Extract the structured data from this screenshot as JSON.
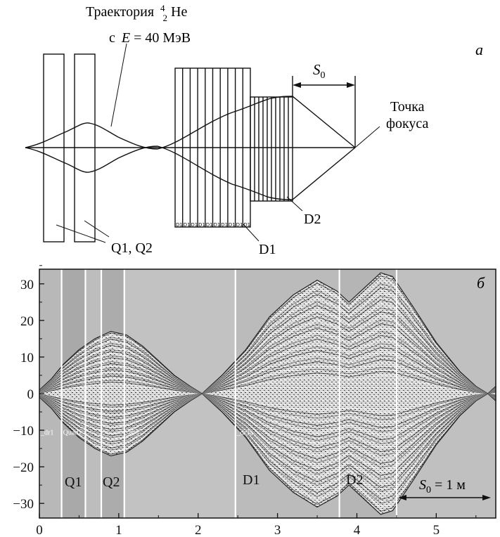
{
  "top_diagram": {
    "panel_label": "а",
    "trajectory_label_line1": "Траектория",
    "isotope_A": "4",
    "isotope_Z": "2",
    "isotope_symbol": "He",
    "energy_prefix": "с",
    "energy_E": "E",
    "energy_value": " = 40 МэВ",
    "focus_label_line1": "Точка",
    "focus_label_line2": "фокуса",
    "s0_label": "S",
    "s0_sub": "0",
    "q_label": "Q1, Q2",
    "d1_label": "D1",
    "d2_label": "D2",
    "d1_cell_text": "D1"
  },
  "chart_data": {
    "type": "line",
    "panel_label": "б",
    "x_ticks": [
      "0",
      "1",
      "2",
      "3",
      "4",
      "5"
    ],
    "y_ticks": [
      "30",
      "20",
      "10",
      "0",
      "−10",
      "−20",
      "−30"
    ],
    "xlim": [
      0,
      5.75
    ],
    "ylim": [
      -34,
      34
    ],
    "regions": [
      {
        "name": "_dr1",
        "x0": 0,
        "x1": 0.28
      },
      {
        "name": "Quad1",
        "x0": 0.28,
        "x1": 0.58
      },
      {
        "name": "",
        "x0": 0.58,
        "x1": 0.78
      },
      {
        "name": "",
        "x0": 0.78,
        "x1": 1.07
      },
      {
        "name": "_dr3",
        "x0": 1.07,
        "x1": 2.47
      },
      {
        "name": "_dr3a",
        "x0": 2.47,
        "x1": 3.78
      },
      {
        "name": "",
        "x0": 3.78,
        "x1": 4.5
      },
      {
        "name": "",
        "x0": 4.5,
        "x1": 5.75
      }
    ],
    "separators_x": [
      0.28,
      0.58,
      0.78,
      1.07,
      2.47,
      3.78,
      4.5
    ],
    "element_labels": [
      "Q1",
      "Q2",
      "D1",
      "D2"
    ],
    "s0_text": "S",
    "s0_sub": "0",
    "s0_value": " = 1 м",
    "envelope": {
      "x": [
        0,
        0.15,
        0.3,
        0.5,
        0.7,
        0.9,
        1.1,
        1.3,
        1.5,
        1.7,
        1.9,
        2.05,
        2.3,
        2.6,
        2.9,
        3.2,
        3.5,
        3.75,
        3.9,
        4.1,
        4.3,
        4.45,
        4.7,
        5.0,
        5.3,
        5.5,
        5.65,
        5.75
      ],
      "ymax": [
        1,
        4,
        8,
        12,
        15,
        17,
        16,
        13,
        9,
        5,
        2,
        0,
        5,
        12,
        21,
        27,
        31,
        28,
        25,
        29,
        33,
        32,
        24,
        14,
        6,
        2,
        0,
        2
      ]
    }
  }
}
